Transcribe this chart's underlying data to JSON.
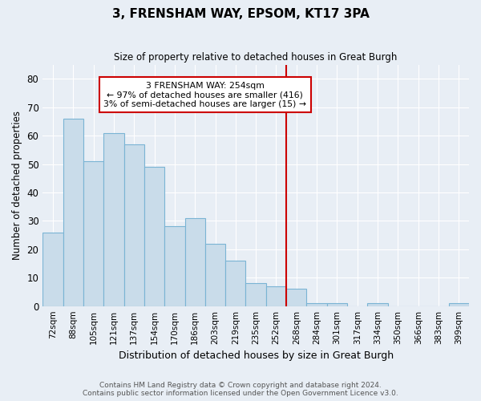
{
  "title": "3, FRENSHAM WAY, EPSOM, KT17 3PA",
  "subtitle": "Size of property relative to detached houses in Great Burgh",
  "xlabel": "Distribution of detached houses by size in Great Burgh",
  "ylabel": "Number of detached properties",
  "bar_labels": [
    "72sqm",
    "88sqm",
    "105sqm",
    "121sqm",
    "137sqm",
    "154sqm",
    "170sqm",
    "186sqm",
    "203sqm",
    "219sqm",
    "235sqm",
    "252sqm",
    "268sqm",
    "284sqm",
    "301sqm",
    "317sqm",
    "334sqm",
    "350sqm",
    "366sqm",
    "383sqm",
    "399sqm"
  ],
  "bar_heights": [
    26,
    66,
    51,
    61,
    57,
    49,
    28,
    31,
    22,
    16,
    8,
    7,
    6,
    1,
    1,
    0,
    1,
    0,
    0,
    0,
    1
  ],
  "bar_color": "#c9dcea",
  "bar_edge_color": "#7ab4d4",
  "vline_color": "#cc0000",
  "annotation_text": "3 FRENSHAM WAY: 254sqm\n← 97% of detached houses are smaller (416)\n3% of semi-detached houses are larger (15) →",
  "ylim": [
    0,
    85
  ],
  "yticks": [
    0,
    10,
    20,
    30,
    40,
    50,
    60,
    70,
    80
  ],
  "background_color": "#e8eef5",
  "grid_color": "#ffffff",
  "footer": "Contains HM Land Registry data © Crown copyright and database right 2024.\nContains public sector information licensed under the Open Government Licence v3.0."
}
